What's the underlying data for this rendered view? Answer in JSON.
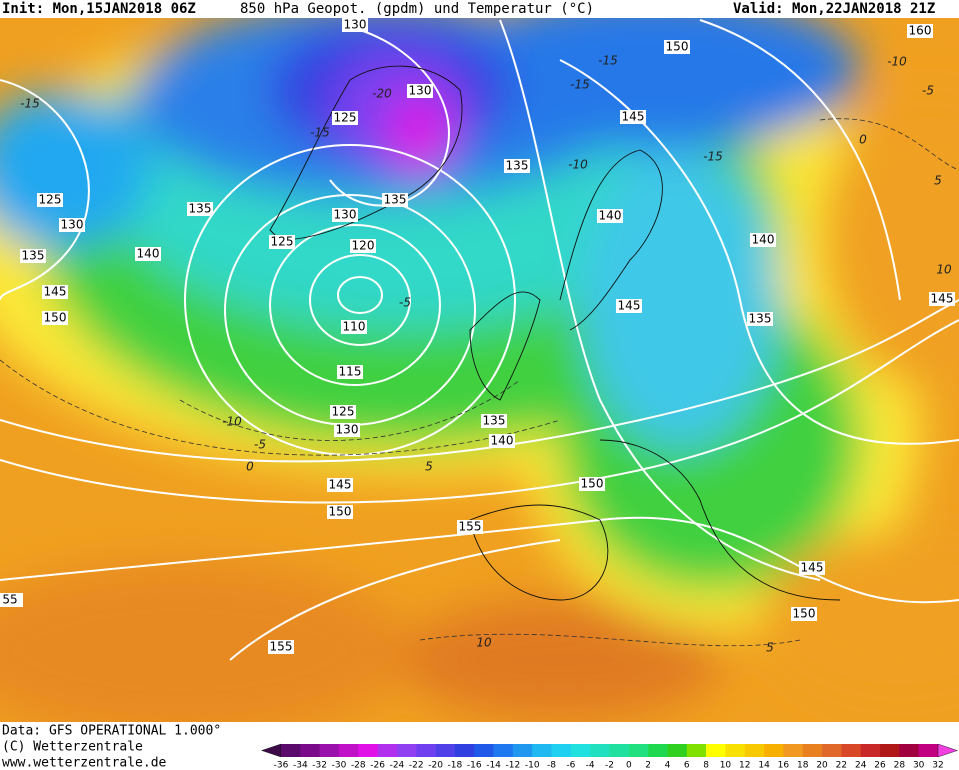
{
  "header": {
    "init": "Init: Mon,15JAN2018 06Z",
    "title": "850 hPa Geopot. (gpdm) und Temperatur (°C)",
    "valid": "Valid: Mon,22JAN2018 21Z"
  },
  "footer": {
    "data": "Data: GFS OPERATIONAL 1.000°",
    "copyright": "(C) Wetterzentrale",
    "url": "www.wetterzentrale.de"
  },
  "colorbar": {
    "ticks": [
      -36,
      -34,
      -32,
      -30,
      -28,
      -26,
      -24,
      -22,
      -20,
      -18,
      -16,
      -14,
      -12,
      -10,
      -8,
      -6,
      -4,
      -2,
      0,
      2,
      4,
      6,
      8,
      10,
      12,
      14,
      16,
      18,
      20,
      22,
      24,
      26,
      28,
      30,
      32
    ],
    "colors": [
      "#3c0a46",
      "#5a0a6a",
      "#7a0a8a",
      "#9a10aa",
      "#c010c8",
      "#e010e6",
      "#b030ee",
      "#9040f0",
      "#7040f0",
      "#5040e8",
      "#3040e0",
      "#2058e8",
      "#2078f0",
      "#2098f0",
      "#20b8f0",
      "#20d0f0",
      "#20e0e0",
      "#20e0c0",
      "#20e0a0",
      "#20e080",
      "#20d850",
      "#30d020",
      "#80e000",
      "#ffff00",
      "#f8e000",
      "#f8c800",
      "#f8b000",
      "#f09820",
      "#e88020",
      "#e06828",
      "#d84828",
      "#c82828",
      "#b01818",
      "#a00040",
      "#c00080",
      "#f040e0"
    ]
  },
  "geopotential_labels": [
    "130",
    "125",
    "130",
    "135",
    "125",
    "130",
    "135",
    "140",
    "145",
    "150",
    "125",
    "130",
    "135",
    "120",
    "110",
    "115",
    "125",
    "130",
    "135",
    "140",
    "145",
    "150",
    "155",
    "155",
    "55",
    "145",
    "150",
    "160",
    "135",
    "140",
    "140",
    "145",
    "135",
    "145",
    "150",
    "145",
    "150"
  ],
  "temperature_labels": [
    "-15",
    "-15",
    "-10",
    "-5",
    "0",
    "5",
    "10",
    "-20",
    "-15",
    "-10",
    "-15",
    "-5",
    "-10",
    "-5",
    "0",
    "5",
    "10",
    "5",
    "-15"
  ]
}
